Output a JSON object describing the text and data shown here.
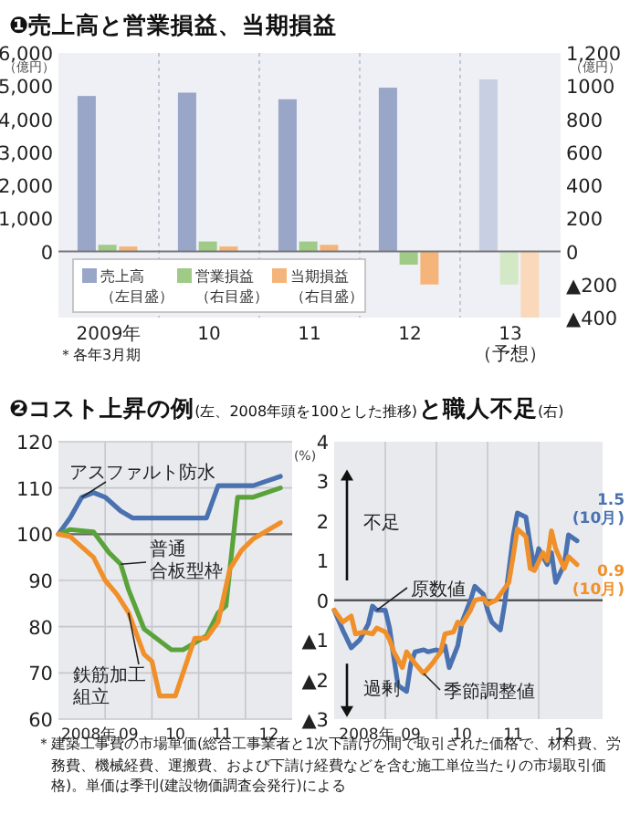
{
  "chart_data": [
    {
      "type": "bar",
      "title": "❶売上高と営業損益、当期損益",
      "categories": [
        "2009年",
        "10",
        "11",
        "12",
        "13（予想）"
      ],
      "ylabel": "（億円）",
      "y2label": "（億円）",
      "ylim": [
        -2000,
        6000
      ],
      "yticks": [
        0,
        {
          "value": 1000,
          "label": "1,000"
        },
        {
          "value": 2000,
          "label": "2,000"
        },
        {
          "value": 3000,
          "label": "3,000"
        },
        {
          "value": 4000,
          "label": "4,000"
        },
        {
          "value": 5000,
          "label": "5,000"
        },
        {
          "value": 6000,
          "label": "6,000"
        }
      ],
      "y2lim": [
        -400,
        1200
      ],
      "y2ticks": [
        {
          "value": -400,
          "label": "▲400"
        },
        {
          "value": -200,
          "label": "▲200"
        },
        0,
        200,
        400,
        600,
        800,
        1000,
        {
          "value": 1200,
          "label": "1,200"
        }
      ],
      "grid": "x",
      "legend": "bottom left",
      "annotations": [
        "＊各年3月期"
      ],
      "series": [
        {
          "name": "売上高（左目盛）",
          "color": "#9aa6c8",
          "colors": [
            "#9aa6c8",
            "#9aa6c8",
            "#9aa6c8",
            "#9aa6c8",
            "#c8cfe3"
          ],
          "values": [
            4700,
            4800,
            4600,
            4950,
            5200
          ]
        },
        {
          "name": "営業損益（右目盛）",
          "color": "#9fcb86",
          "colors": [
            "#9fcb86",
            "#9fcb86",
            "#9fcb86",
            "#9fcb86",
            "#d3e8c5"
          ],
          "axis": "y2",
          "values": [
            40,
            60,
            60,
            -80,
            -200
          ]
        },
        {
          "name": "当期損益（右目盛）",
          "color": "#f5b57a",
          "colors": [
            "#f5b57a",
            "#f5b57a",
            "#f5b57a",
            "#f5b57a",
            "#f9d9b9"
          ],
          "axis": "y2",
          "values": [
            30,
            30,
            40,
            -200,
            -400
          ]
        }
      ]
    },
    {
      "type": "line",
      "title": "❷コスト上昇の例",
      "subtitle": "(左、2008年頭を100とした推移)",
      "xlim": [
        "2008-01",
        "2013-01"
      ],
      "xticks": [
        {
          "value": "2008-07",
          "label": "2008年"
        },
        {
          "value": "2009-07",
          "label": "09"
        },
        {
          "value": "2010-07",
          "label": "10"
        },
        {
          "value": "2011-07",
          "label": "11"
        },
        {
          "value": "2012-07",
          "label": "12"
        }
      ],
      "ylim": [
        60,
        120
      ],
      "yticks": [
        60,
        70,
        80,
        90,
        100,
        110,
        120
      ],
      "grid": true,
      "ref_lines": [
        {
          "axis": "y",
          "value": 100,
          "color": "#666666"
        }
      ],
      "annotations": [
        "＊建築工事費の市場単価(総合工事業者と1次下請けの間で取引された価格で、材料費、労務費、機械経費、運搬費、および下請け経費などを含む施工単位当たりの市場取引価格)。単価は季刊(建設物価調査会発行)による"
      ],
      "series": [
        {
          "name": "アスファルト防水",
          "color": "#4a72b0",
          "x": [
            "2008-01",
            "2008-04",
            "2008-07",
            "2008-10",
            "2009-01",
            "2009-05",
            "2009-08",
            "2011-03",
            "2011-06",
            "2012-03",
            "2012-10"
          ],
          "values": [
            100,
            103.5,
            108,
            109,
            108,
            105,
            103.5,
            103.5,
            110.5,
            110.5,
            112.5
          ]
        },
        {
          "name": "普通合板型枠",
          "color": "#5aa33a",
          "x": [
            "2008-01",
            "2008-04",
            "2008-10",
            "2009-02",
            "2009-05",
            "2009-07",
            "2009-11",
            "2010-06",
            "2010-09",
            "2011-03",
            "2011-06",
            "2011-08",
            "2011-11",
            "2012-03",
            "2012-10"
          ],
          "values": [
            100,
            101,
            100.5,
            96,
            93.5,
            88,
            79.5,
            75,
            75,
            78,
            83,
            84.5,
            108,
            108,
            110
          ]
        },
        {
          "name": "鉄筋加工組立",
          "color": "#f0902a",
          "x": [
            "2008-01",
            "2008-04",
            "2008-10",
            "2009-01",
            "2009-04",
            "2009-07",
            "2009-11",
            "2010-01",
            "2010-03",
            "2010-07",
            "2010-12",
            "2011-03",
            "2011-06",
            "2011-09",
            "2011-12",
            "2012-03",
            "2012-10"
          ],
          "values": [
            100,
            99.5,
            95,
            90,
            87,
            83,
            74,
            72.5,
            65,
            65,
            77.5,
            77.5,
            81,
            92.5,
            96.5,
            99,
            102.5
          ]
        }
      ]
    },
    {
      "type": "line",
      "title": "と職人不足",
      "subtitle": "(右)",
      "xlim": [
        "2008-01",
        "2013-04"
      ],
      "xticks": [
        {
          "value": "2008-07",
          "label": "2008年"
        },
        {
          "value": "2009-07",
          "label": "09"
        },
        {
          "value": "2010-07",
          "label": "10"
        },
        {
          "value": "2011-07",
          "label": "11"
        },
        {
          "value": "2012-07",
          "label": "12"
        }
      ],
      "ylabel": "(%)",
      "ylim": [
        -3,
        4
      ],
      "yticks": [
        {
          "value": -3,
          "label": "▲3"
        },
        {
          "value": -2,
          "label": "▲2"
        },
        {
          "value": -1,
          "label": "▲1"
        },
        0,
        1,
        2,
        3,
        4
      ],
      "grid": "x",
      "ref_lines": [
        {
          "axis": "y",
          "value": 0,
          "color": "#555555"
        }
      ],
      "annotations": [
        "不足",
        "過剰"
      ],
      "series": [
        {
          "name": "原数値",
          "color": "#4a72b0",
          "x": [
            "2008-01",
            "2008-03",
            "2008-05",
            "2008-07",
            "2008-09",
            "2008-10",
            "2008-11",
            "2009-01",
            "2009-02",
            "2009-03",
            "2009-04",
            "2009-06",
            "2009-07",
            "2009-08",
            "2009-10",
            "2009-11",
            "2010-01",
            "2010-02",
            "2010-03",
            "2010-04",
            "2010-06",
            "2010-07",
            "2010-09",
            "2010-10",
            "2010-12",
            "2011-01",
            "2011-02",
            "2011-04",
            "2011-05",
            "2011-07",
            "2011-08",
            "2011-10",
            "2011-11",
            "2011-12",
            "2012-01",
            "2012-03",
            "2012-04",
            "2012-05",
            "2012-07",
            "2012-08",
            "2012-10"
          ],
          "values": [
            -0.25,
            -0.75,
            -1.2,
            -1.0,
            -0.6,
            -0.15,
            -0.25,
            -0.25,
            -0.7,
            -1.45,
            -2.15,
            -2.3,
            -1.6,
            -1.3,
            -1.25,
            -1.3,
            -1.25,
            -1.3,
            -1.15,
            -1.7,
            -1.15,
            -0.55,
            0,
            0.35,
            0.15,
            -0.25,
            -0.55,
            -0.75,
            -0.1,
            1.6,
            2.2,
            2.1,
            1.4,
            0.8,
            1.3,
            0.9,
            1.2,
            0.45,
            0.9,
            1.65,
            1.5
          ],
          "value_labels": [
            null,
            null,
            null,
            null,
            null,
            null,
            null,
            null,
            null,
            null,
            null,
            null,
            null,
            null,
            null,
            null,
            null,
            null,
            null,
            null,
            null,
            null,
            null,
            null,
            null,
            null,
            null,
            null,
            null,
            null,
            null,
            null,
            null,
            null,
            null,
            null,
            null,
            null,
            null,
            null,
            "1.5\n(10月)"
          ]
        },
        {
          "name": "季節調整値",
          "color": "#f0902a",
          "x": [
            "2008-01",
            "2008-03",
            "2008-05",
            "2008-06",
            "2008-08",
            "2008-10",
            "2008-11",
            "2009-01",
            "2009-02",
            "2009-03",
            "2009-05",
            "2009-06",
            "2009-08",
            "2009-10",
            "2009-12",
            "2010-02",
            "2010-03",
            "2010-05",
            "2010-06",
            "2010-07",
            "2010-09",
            "2010-10",
            "2010-12",
            "2011-01",
            "2011-03",
            "2011-04",
            "2011-06",
            "2011-07",
            "2011-08",
            "2011-10",
            "2011-11",
            "2011-12",
            "2012-02",
            "2012-03",
            "2012-04",
            "2012-05",
            "2012-07",
            "2012-08",
            "2012-10"
          ],
          "values": [
            -0.25,
            -0.55,
            -0.4,
            -0.85,
            -0.8,
            -0.85,
            -0.7,
            -0.8,
            -1.0,
            -1.3,
            -1.7,
            -1.3,
            -1.6,
            -1.85,
            -1.6,
            -1.3,
            -0.85,
            -0.8,
            -0.55,
            -0.6,
            -0.25,
            0,
            0.05,
            -0.1,
            0,
            0.15,
            0.45,
            1.1,
            1.8,
            1.6,
            0.8,
            0.75,
            1.2,
            1.0,
            1.75,
            1.3,
            0.8,
            1.1,
            0.9
          ],
          "value_labels": [
            null,
            null,
            null,
            null,
            null,
            null,
            null,
            null,
            null,
            null,
            null,
            null,
            null,
            null,
            null,
            null,
            null,
            null,
            null,
            null,
            null,
            null,
            null,
            null,
            null,
            null,
            null,
            null,
            null,
            null,
            null,
            null,
            null,
            null,
            null,
            null,
            null,
            null,
            "0.9\n(10月)"
          ]
        }
      ]
    }
  ]
}
